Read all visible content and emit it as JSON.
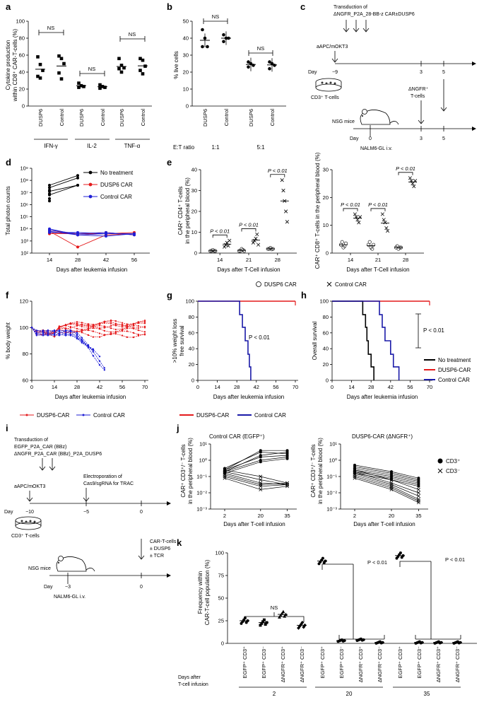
{
  "panels": {
    "a": "a",
    "b": "b",
    "c": "c",
    "d": "d",
    "e": "e",
    "f": "f",
    "g": "g",
    "h": "h",
    "i": "i",
    "j": "j",
    "k": "k"
  },
  "chart_data": [
    {
      "id": "a",
      "type": "scatter",
      "ylabel_line1": "Cytokine production",
      "ylabel_line2": "within CD8⁺ CAR-T-cells (%)",
      "ylim": [
        0,
        100
      ],
      "yticks": [
        "0",
        "20",
        "40",
        "60",
        "80",
        "100"
      ],
      "groups": [
        "IFN-γ",
        "IL-2",
        "TNF-α"
      ],
      "categories": [
        "DUSP6",
        "Control",
        "DUSP6",
        "Control",
        "DUSP6",
        "Control"
      ],
      "values": [
        [
          58,
          49,
          42,
          35,
          33
        ],
        [
          59,
          56,
          50,
          39,
          32
        ],
        [
          27,
          24,
          23,
          22
        ],
        [
          25,
          23,
          22,
          21
        ],
        [
          56,
          48,
          45,
          44,
          40
        ],
        [
          56,
          54,
          47,
          42,
          38
        ]
      ],
      "annotations": [
        "NS",
        "NS",
        "NS"
      ]
    },
    {
      "id": "b",
      "type": "scatter",
      "ylabel": "% live cells",
      "ylim": [
        0,
        50
      ],
      "yticks": [
        "0",
        "10",
        "20",
        "30",
        "40",
        "50"
      ],
      "categories": [
        "DUSP6",
        "Control",
        "DUSP6",
        "Control"
      ],
      "ratio_label": "E:T ratio",
      "ratios": [
        "1:1",
        "5:1"
      ],
      "values": [
        [
          45,
          40,
          35,
          35
        ],
        [
          42,
          40,
          40,
          38
        ],
        [
          26,
          25,
          24,
          23
        ],
        [
          26,
          25,
          24,
          22
        ]
      ],
      "annotations": [
        "NS",
        "NS"
      ]
    },
    {
      "id": "d",
      "type": "line",
      "ylabel": "Total photon counts",
      "yticks": [
        "10²",
        "10³",
        "10⁴",
        "10⁵",
        "10⁶",
        "10⁷",
        "10⁸",
        "10⁹"
      ],
      "x": [
        14,
        28,
        42,
        56
      ],
      "xlabels": [
        "14",
        "28",
        "42",
        "56"
      ],
      "xlabel": "Days after leukemia infusion",
      "series": [
        {
          "name": "No treatment",
          "color": "#000000",
          "log_values": [
            [
              7.1,
              7.6
            ],
            [
              7.4,
              8.2
            ],
            [
              7.6,
              8.4
            ],
            [
              6.8,
              7.6
            ],
            [
              7.2
            ],
            [
              6.9
            ],
            [
              6.5
            ],
            [
              6.3
            ]
          ]
        },
        {
          "name": "DUSP6 CAR",
          "color": "#e41a1c",
          "log_values": [
            [
              3.9,
              3.5,
              3.6,
              3.6
            ],
            [
              3.8,
              2.5,
              3.5,
              3.6
            ],
            [
              3.7,
              3.6,
              3.6,
              3.7
            ],
            [
              3.6,
              3.6,
              3.7,
              3.5
            ]
          ]
        },
        {
          "name": "Control CAR",
          "color": "#1f1fd6",
          "log_values": [
            [
              3.9,
              3.6,
              3.7,
              3.5
            ],
            [
              3.8,
              3.5,
              3.4,
              3.6
            ],
            [
              3.7,
              3.7,
              3.6,
              3.6
            ],
            [
              4.0,
              3.5,
              3.6
            ]
          ]
        }
      ]
    },
    {
      "id": "e1",
      "type": "scatter",
      "ylabel_line1": "CAR⁺ CD4⁺ T-cells",
      "ylabel_line2": "in the peripheral blood (%)",
      "ylim": [
        0,
        40
      ],
      "yticks": [
        "0",
        "10",
        "20",
        "30",
        "40"
      ],
      "xlabels": [
        "14",
        "21",
        "28"
      ],
      "xlabel": "Days after T-Cell infusion",
      "dusp6": [
        [
          1,
          1,
          1.5,
          1,
          1
        ],
        [
          1,
          1,
          2,
          1.5,
          1
        ],
        [
          2,
          2,
          2.5,
          1.8,
          2
        ]
      ],
      "control": [
        [
          3,
          4,
          5,
          3.5,
          6
        ],
        [
          5,
          6,
          7,
          9,
          4
        ],
        [
          35,
          30,
          25,
          20,
          15
        ]
      ],
      "pvalues": [
        "P < 0.01",
        "P < 0.01",
        "P < 0.01"
      ]
    },
    {
      "id": "e2",
      "type": "scatter",
      "ylabel": "CAR⁺ CD8⁺ T-cells in the peripheral blood (%)",
      "ylim": [
        0,
        30
      ],
      "yticks": [
        "0",
        "10",
        "20",
        "30"
      ],
      "xlabels": [
        "14",
        "21",
        "28"
      ],
      "xlabel": "Days after T-Cell infusion",
      "dusp6": [
        [
          3,
          4,
          2,
          2.5,
          3.5
        ],
        [
          3,
          4,
          2,
          1.5,
          3
        ],
        [
          2,
          2.5,
          1.5,
          2,
          2
        ]
      ],
      "control": [
        [
          14,
          13,
          12,
          11,
          13
        ],
        [
          14,
          12,
          11,
          9,
          8
        ],
        [
          27,
          26,
          25,
          24,
          26
        ]
      ],
      "pvalues": [
        "P < 0.01",
        "P < 0.01",
        "P < 0.01"
      ],
      "legend": [
        "DUSP6 CAR",
        "Control CAR"
      ]
    },
    {
      "id": "f",
      "type": "line",
      "ylabel": "% body weight",
      "ylim": [
        60,
        120
      ],
      "yticks": [
        "60",
        "80",
        "100",
        "120"
      ],
      "xticks": [
        "0",
        "14",
        "28",
        "42",
        "56",
        "70"
      ],
      "xlabel": "Days after leukemia infusion",
      "series": [
        {
          "name": "DUSP6-CAR",
          "color": "#e41a1c"
        },
        {
          "name": "Control CAR",
          "color": "#1f1fd6"
        }
      ]
    },
    {
      "id": "g",
      "type": "line",
      "ylabel_line1": ">10% weight loss",
      "ylabel_line2": "free survival",
      "ylim": [
        0,
        100
      ],
      "yticks": [
        "0",
        "20",
        "40",
        "60",
        "80",
        "100"
      ],
      "xticks": [
        "0",
        "14",
        "28",
        "42",
        "56",
        "70"
      ],
      "xlabel": "Days after leukemia infusion",
      "pvalue": "P < 0.01",
      "series": [
        {
          "name": "DUSP6-CAR",
          "color": "#e41a1c"
        },
        {
          "name": "Control CAR",
          "color": "#1a1aa8"
        }
      ]
    },
    {
      "id": "h",
      "type": "line",
      "ylabel": "Overall survival",
      "ylim": [
        0,
        100
      ],
      "yticks": [
        "0",
        "20",
        "40",
        "60",
        "80",
        "100"
      ],
      "xticks": [
        "0",
        "14",
        "28",
        "42",
        "56",
        "70"
      ],
      "xlabel": "Days after leukemia infusion",
      "pvalue": "P < 0.01",
      "series": [
        {
          "name": "No treatment",
          "color": "#000000"
        },
        {
          "name": "DUSP6-CAR",
          "color": "#e41a1c"
        },
        {
          "name": "Control CAR",
          "color": "#1a1aa8"
        }
      ]
    },
    {
      "id": "j1",
      "type": "line",
      "title": "Control CAR (EGFP⁺)",
      "ylabel_line1": "CAR⁺ CD3⁺/⁻ T-cells",
      "ylabel_line2": "in the peripheral blood (%)",
      "yticks": [
        "10⁻³",
        "10⁻²",
        "10⁻¹",
        "10⁰",
        "10¹"
      ],
      "xticks": [
        "2",
        "20",
        "35"
      ],
      "xlabel": "Days after T-cell infusion",
      "cd3pos_log": [
        [
          -0.6,
          0.6,
          0.6
        ],
        [
          -0.5,
          0.5,
          0.4
        ],
        [
          -0.7,
          0.3,
          0.5
        ],
        [
          -0.6,
          0.2,
          0.3
        ],
        [
          -0.7,
          0.0,
          0.2
        ],
        [
          -0.8,
          -0.1,
          0.1
        ]
      ],
      "cd3neg_log": [
        [
          -0.6,
          -1.0,
          -1.4
        ],
        [
          -0.7,
          -1.2,
          -1.5
        ],
        [
          -0.8,
          -1.4,
          -1.5
        ],
        [
          -0.9,
          -1.5,
          -1.4
        ],
        [
          -1.0,
          -1.6,
          -1.5
        ],
        [
          -1.1,
          -1.8,
          -1.6
        ]
      ]
    },
    {
      "id": "j2",
      "type": "line",
      "title": "DUSP6-CAR (ΔNGFR⁺)",
      "ylabel_line1": "CAR⁺ CD3⁺/⁻ T-cells",
      "ylabel_line2": "in the peripheral blood (%)",
      "yticks": [
        "10⁻³",
        "10⁻²",
        "10⁻¹",
        "10⁰",
        "10¹"
      ],
      "xticks": [
        "2",
        "20",
        "35"
      ],
      "xlabel": "Days after T-cell infusion",
      "legend": [
        "CD3⁺",
        "CD3⁻"
      ],
      "cd3pos_log": [
        [
          -0.3,
          -0.7,
          -1.1
        ],
        [
          -0.4,
          -0.8,
          -1.2
        ],
        [
          -0.5,
          -0.9,
          -1.3
        ],
        [
          -0.6,
          -1.0,
          -1.4
        ],
        [
          -0.7,
          -1.1,
          -1.5
        ],
        [
          -0.8,
          -1.2,
          -1.6
        ]
      ],
      "cd3neg_log": [
        [
          -0.6,
          -1.2,
          -1.8
        ],
        [
          -0.7,
          -1.4,
          -2.0
        ],
        [
          -0.8,
          -1.5,
          -2.2
        ],
        [
          -0.9,
          -1.6,
          -2.4
        ],
        [
          -1.0,
          -1.7,
          -2.5
        ],
        [
          -1.1,
          -1.8,
          -2.6
        ]
      ]
    },
    {
      "id": "k",
      "type": "scatter",
      "ylabel_line1": "Frequency within",
      "ylabel_line2": "CAR-T-cell population (%)",
      "ylim": [
        0,
        100
      ],
      "yticks": [
        "0",
        "25",
        "50",
        "75",
        "100"
      ],
      "categories": [
        "EGFP⁺ CD3⁺",
        "EGFP⁺ CD3⁻",
        "ΔNGFR⁺ CD3⁺",
        "ΔNGFR⁺ CD3⁻"
      ],
      "days_label_line1": "Days after",
      "days_label_line2": "T-cell infusion",
      "days": [
        "2",
        "20",
        "35"
      ],
      "means": [
        [
          25,
          23,
          32,
          20
        ],
        [
          91,
          3,
          4,
          1
        ],
        [
          97,
          1,
          1,
          1
        ]
      ],
      "annotations": [
        "NS",
        "P < 0.01",
        "P < 0.01"
      ]
    }
  ],
  "panel_c": {
    "transduction_line1": "Transduction of",
    "transduction_line2": "ΔNGFR_P2A_28-BB-z CAR±DUSP6",
    "aapc": "aAPC/mOKT3",
    "day_label": "Day",
    "days_top": [
      "−9",
      "3",
      "5"
    ],
    "cd3": "CD3⁺ T-cells",
    "ngfr_line1": "ΔNGFR⁺",
    "ngfr_line2": "T-cells",
    "nsg": "NSG mice",
    "days_bottom": [
      "0",
      "3",
      "5"
    ],
    "nalm6": "NALM6-GL i.v."
  },
  "panel_i": {
    "transduction_line1": "Transduction of",
    "transduction_line2": "EGFP_P2A_CAR (BBz)",
    "transduction_line3": "ΔNGFR_P2A_CAR (BBz)_P2A_DUSP6",
    "aapc": "aAPC/mOKT3",
    "electro_line1": "Electroporation of",
    "electro_line2": "Cas9/sgRNA for TRAC",
    "day_label": "Day",
    "days_top": [
      "−10",
      "−5",
      "0"
    ],
    "cd3": "CD3⁺ T-cells",
    "cart_line1": "CAR-T-cells",
    "cart_line2": "± DUSP6",
    "cart_line3": "± TCR",
    "nsg": "NSG mice",
    "days_bottom": [
      "−3",
      "0"
    ],
    "nalm6": "NALM6-GL i.v."
  },
  "legends": {
    "f": [
      "DUSP6-CAR",
      "Control CAR"
    ],
    "g": [
      "DUSP6-CAR",
      "Control CAR"
    ],
    "h": [
      "No treatment",
      "DUSP6-CAR",
      "Control CAR"
    ],
    "d": [
      "No treatment",
      "DUSP6 CAR",
      "Control CAR"
    ]
  }
}
